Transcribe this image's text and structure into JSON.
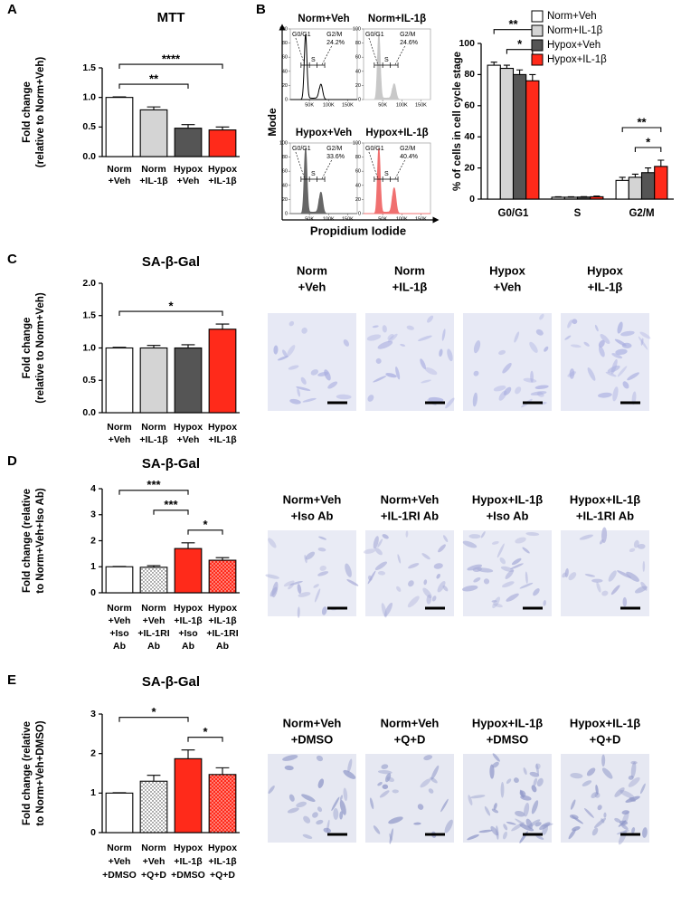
{
  "panels": [
    "A",
    "B",
    "C",
    "D",
    "E"
  ],
  "chart_data": [
    {
      "type": "bar",
      "title": "MTT",
      "ylabel": [
        "Fold change",
        "(relative to Norm+Veh)"
      ],
      "categories": [
        [
          "Norm",
          "+Veh"
        ],
        [
          "Norm",
          "+IL-1β"
        ],
        [
          "Hypox",
          "+Veh"
        ],
        [
          "Hypox",
          "+IL-1β"
        ]
      ],
      "values": [
        1.0,
        0.79,
        0.48,
        0.45
      ],
      "errors": [
        0.01,
        0.05,
        0.06,
        0.05
      ],
      "colors": [
        "#ffffff",
        "#d4d4d4",
        "#555555",
        "#ff2a1a"
      ],
      "ylim": [
        0,
        1.5
      ],
      "yticks": [
        {
          "value": 0,
          "label": "0.0"
        },
        0.5,
        {
          "value": 1,
          "label": "1.0"
        },
        1.5
      ],
      "significance": [
        {
          "between": [
            0,
            2
          ],
          "label": "**"
        },
        {
          "between": [
            0,
            3
          ],
          "label": "****"
        }
      ]
    },
    {
      "type": "histogram",
      "ylabel": "Mode",
      "xlabel": "Propidium Iodide",
      "xlim": [
        0,
        175000
      ],
      "ylim": [
        0,
        100
      ],
      "yticks": [
        0,
        20,
        40,
        60,
        80,
        100
      ],
      "xticks": [
        {
          "value": 50000,
          "label": "50K"
        },
        {
          "value": 100000,
          "label": "100K"
        },
        {
          "value": 150000,
          "label": "150K"
        }
      ],
      "phases": [
        "G0/G1",
        "S",
        "G2/M"
      ],
      "panels": [
        {
          "name": "Norm+Veh",
          "color": "#000000",
          "filled": false,
          "g2m": {
            "value": 24.2,
            "label": "24.2%"
          }
        },
        {
          "name": "Norm+IL-1β",
          "color": "#c8c8c8",
          "filled": true,
          "g2m": {
            "value": 24.6,
            "label": "24.6%"
          }
        },
        {
          "name": "Hypox+Veh",
          "color": "#666666",
          "filled": true,
          "g2m": {
            "value": 33.6,
            "label": "33.6%"
          }
        },
        {
          "name": "Hypox+IL-1β",
          "color": "#f07070",
          "filled": true,
          "g2m": {
            "value": 40.4,
            "label": "40.4%"
          }
        }
      ]
    },
    {
      "type": "bar",
      "ylabel": "% of cells in cell cycle stage",
      "categories": [
        "G0/G1",
        "S",
        "G2/M"
      ],
      "series": [
        {
          "name": "Norm+Veh",
          "color": "#ffffff",
          "values": [
            86,
            1.2,
            12
          ],
          "errors": [
            2,
            0.3,
            2
          ]
        },
        {
          "name": "Norm+IL-1β",
          "color": "#d4d4d4",
          "values": [
            84,
            1.2,
            14
          ],
          "errors": [
            2,
            0.3,
            2
          ]
        },
        {
          "name": "Hypox+Veh",
          "color": "#555555",
          "values": [
            80,
            1.3,
            17
          ],
          "errors": [
            3,
            0.3,
            3
          ]
        },
        {
          "name": "Hypox+IL-1β",
          "color": "#ff2a1a",
          "values": [
            76,
            1.5,
            21
          ],
          "errors": [
            4,
            0.4,
            4
          ]
        }
      ],
      "ylim": [
        0,
        100
      ],
      "yticks": [
        0,
        20,
        40,
        60,
        80,
        100
      ],
      "legend": "top-right",
      "significance": [
        {
          "category": 0,
          "between": [
            1,
            3
          ],
          "label": "*"
        },
        {
          "category": 0,
          "between": [
            0,
            3
          ],
          "label": "**"
        },
        {
          "category": 2,
          "between": [
            1,
            3
          ],
          "label": "*"
        },
        {
          "category": 2,
          "between": [
            0,
            3
          ],
          "label": "**"
        }
      ]
    },
    {
      "type": "bar",
      "title": "SA-β-Gal",
      "ylabel": [
        "Fold change",
        "(relative to Norm+Veh)"
      ],
      "categories": [
        [
          "Norm",
          "+Veh"
        ],
        [
          "Norm",
          "+IL-1β"
        ],
        [
          "Hypox",
          "+Veh"
        ],
        [
          "Hypox",
          "+IL-1β"
        ]
      ],
      "values": [
        1.0,
        1.0,
        1.0,
        1.29
      ],
      "errors": [
        0.01,
        0.04,
        0.05,
        0.08
      ],
      "colors": [
        "#ffffff",
        "#d4d4d4",
        "#555555",
        "#ff2a1a"
      ],
      "ylim": [
        0,
        2
      ],
      "yticks": [
        {
          "value": 0,
          "label": "0.0"
        },
        0.5,
        {
          "value": 1,
          "label": "1.0"
        },
        1.5,
        {
          "value": 2,
          "label": "2.0"
        }
      ],
      "significance": [
        {
          "between": [
            0,
            3
          ],
          "label": "*"
        }
      ]
    },
    {
      "type": "bar",
      "title": "SA-β-Gal",
      "ylabel": [
        "Fold change (relative",
        "to Norm+Veh+Iso Ab)"
      ],
      "categories": [
        [
          "Norm",
          "+Veh",
          "+Iso",
          "Ab"
        ],
        [
          "Norm",
          "+Veh",
          "+IL-1RI",
          "Ab"
        ],
        [
          "Hypox",
          "+IL-1β",
          "+Iso",
          "Ab"
        ],
        [
          "Hypox",
          "+IL-1β",
          "+IL-1RI",
          "Ab"
        ]
      ],
      "values": [
        1.0,
        0.98,
        1.7,
        1.25
      ],
      "errors": [
        0.01,
        0.06,
        0.22,
        0.1
      ],
      "colors": [
        "#ffffff",
        "#ffffff",
        "#ff2a1a",
        "#ff2a1a"
      ],
      "patterned": [
        false,
        true,
        false,
        true
      ],
      "ylim": [
        0,
        4
      ],
      "yticks": [
        0,
        1,
        2,
        3,
        4
      ],
      "significance": [
        {
          "between": [
            2,
            3
          ],
          "label": "*"
        },
        {
          "between": [
            1,
            2
          ],
          "label": "***"
        },
        {
          "between": [
            0,
            2
          ],
          "label": "***"
        }
      ]
    },
    {
      "type": "bar",
      "title": "SA-β-Gal",
      "ylabel": [
        "Fold change (relative",
        "to Norm+Veh+DMSO)"
      ],
      "categories": [
        [
          "Norm",
          "+Veh",
          "+DMSO"
        ],
        [
          "Norm",
          "+Veh",
          "+Q+D"
        ],
        [
          "Hypox",
          "+IL-1β",
          "+DMSO"
        ],
        [
          "Hypox",
          "+IL-1β",
          "+Q+D"
        ]
      ],
      "values": [
        1.0,
        1.3,
        1.87,
        1.47
      ],
      "errors": [
        0.01,
        0.15,
        0.22,
        0.17
      ],
      "colors": [
        "#ffffff",
        "#ffffff",
        "#ff2a1a",
        "#ff2a1a"
      ],
      "patterned": [
        false,
        true,
        false,
        true
      ],
      "ylim": [
        0,
        3
      ],
      "yticks": [
        0,
        1,
        2,
        3
      ],
      "significance": [
        {
          "between": [
            2,
            3
          ],
          "label": "*"
        },
        {
          "between": [
            0,
            2
          ],
          "label": "*"
        }
      ]
    }
  ],
  "micrographs": [
    {
      "labels": [
        [
          "Norm",
          "+Veh"
        ],
        [
          "Norm",
          "+IL-1β"
        ],
        [
          "Hypox",
          "+Veh"
        ],
        [
          "Hypox",
          "+IL-1β"
        ]
      ]
    },
    {
      "labels": [
        [
          "Norm+Veh",
          "+Iso Ab"
        ],
        [
          "Norm+Veh",
          "+IL-1RI Ab"
        ],
        [
          "Hypox+IL-1β",
          "+Iso Ab"
        ],
        [
          "Hypox+IL-1β",
          "+IL-1RI Ab"
        ]
      ]
    },
    {
      "labels": [
        [
          "Norm+Veh",
          "+DMSO"
        ],
        [
          "Norm+Veh",
          "+Q+D"
        ],
        [
          "Hypox+IL-1β",
          "+DMSO"
        ],
        [
          "Hypox+IL-1β",
          "+Q+D"
        ]
      ]
    }
  ]
}
